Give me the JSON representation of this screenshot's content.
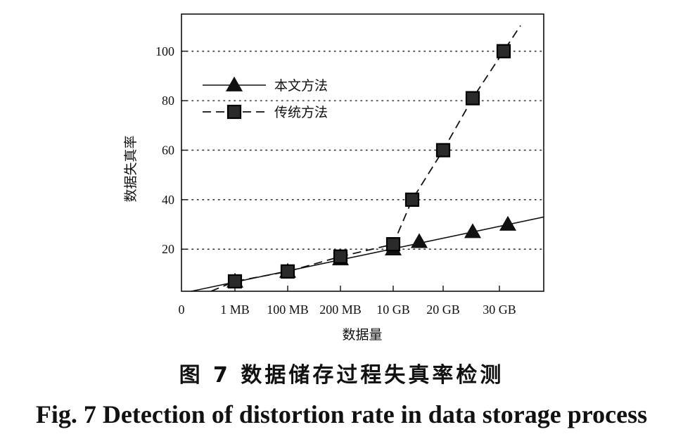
{
  "chart_data": {
    "type": "line",
    "xlabel": "数据量",
    "ylabel": "数据失真率",
    "x_ticks": [
      "0",
      "1 MB",
      "100 MB",
      "200 MB",
      "10 GB",
      "20 GB",
      "30 GB"
    ],
    "y_ticks": [
      20,
      40,
      60,
      80,
      100
    ],
    "ylim": [
      3,
      115
    ],
    "grid": "horizontal-dotted",
    "legend_position": "top-left",
    "series": [
      {
        "name": "本文方法",
        "marker": "triangle",
        "line_style": "solid",
        "points": [
          {
            "x": "1 MB",
            "y": 7
          },
          {
            "x": "100 MB",
            "y": 11
          },
          {
            "x": "200 MB",
            "y": 16
          },
          {
            "x": "10 GB",
            "y": 20
          },
          {
            "x": "15 GB",
            "y": 23
          },
          {
            "x": "25 GB",
            "y": 27
          },
          {
            "x": "32 GB",
            "y": 30
          }
        ],
        "trend": {
          "y_at_left_edge": 3,
          "y_at_right_edge": 33
        }
      },
      {
        "name": "传统方法",
        "marker": "square",
        "line_style": "dashed",
        "points": [
          {
            "x": "1 MB",
            "y": 7
          },
          {
            "x": "100 MB",
            "y": 11
          },
          {
            "x": "200 MB",
            "y": 17
          },
          {
            "x": "10 GB",
            "y": 22
          },
          {
            "x": "13 GB",
            "y": 40
          },
          {
            "x": "20 GB",
            "y": 60
          },
          {
            "x": "25 GB",
            "y": 81
          },
          {
            "x": "31 GB",
            "y": 100
          }
        ]
      }
    ]
  },
  "caption": {
    "cn": "图 7  数据储存过程失真率检测",
    "en": "Fig. 7  Detection of distortion rate in data storage process"
  }
}
